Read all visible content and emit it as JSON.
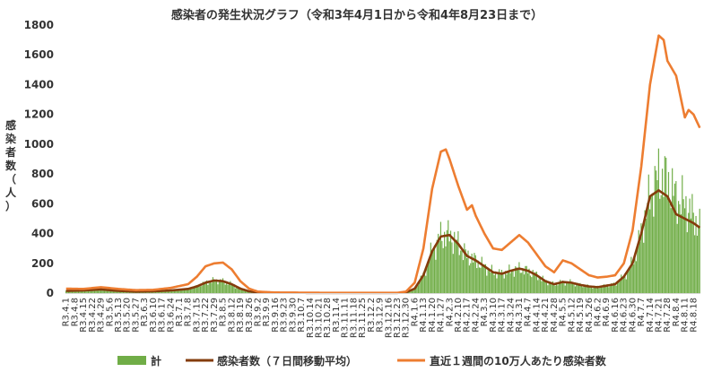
{
  "chart_data": {
    "type": "bar",
    "title": "感染者の発生状況グラフ（令和3年4月1日から令和4年8月23日まで）",
    "ylabel_chars": [
      "感",
      "染",
      "者",
      "数",
      "（",
      "人",
      "）"
    ],
    "ylim": [
      0,
      1800
    ],
    "yticks": [
      "0",
      "200",
      "400",
      "600",
      "800",
      "1000",
      "1200",
      "1400",
      "1600",
      "1800"
    ],
    "days_total": 510,
    "x_tick_labels": [
      "R3.4.1",
      "R3.4.8",
      "R3.4.15",
      "R3.4.22",
      "R3.4.29",
      "R3.5.6",
      "R3.5.13",
      "R3.5.20",
      "R3.5.27",
      "R3.6.3",
      "R3.6.10",
      "R3.6.17",
      "R3.6.24",
      "R3.7.1",
      "R3.7.8",
      "R3.7.15",
      "R3.7.22",
      "R3.7.29",
      "R3.8.5",
      "R3.8.12",
      "R3.8.19",
      "R3.8.26",
      "R3.9.2",
      "R3.9.9",
      "R3.9.16",
      "R3.9.23",
      "R3.9.30",
      "R3.10.7",
      "R3.10.14",
      "R3.10.21",
      "R3.10.28",
      "R3.11.4",
      "R3.11.11",
      "R3.11.18",
      "R3.11.25",
      "R3.12.2",
      "R3.12.9",
      "R3.12.16",
      "R3.12.23",
      "R3.12.30",
      "R4.1.6",
      "R4.1.13",
      "R4.1.20",
      "R4.1.27",
      "R4.2.3",
      "R4.2.10",
      "R4.2.17",
      "R4.2.24",
      "R4.3.3",
      "R4.3.10",
      "R4.3.17",
      "R4.3.24",
      "R4.3.31",
      "R4.4.7",
      "R4.4.14",
      "R4.4.21",
      "R4.4.28",
      "R4.5.5",
      "R4.5.12",
      "R4.5.19",
      "R4.5.26",
      "R4.6.2",
      "R4.6.9",
      "R4.6.16",
      "R4.6.23",
      "R4.6.30",
      "R4.7.7",
      "R4.7.14",
      "R4.7.21",
      "R4.7.28",
      "R4.8.4",
      "R4.8.11",
      "R4.8.18"
    ],
    "series": [
      {
        "name": "計",
        "kind": "bar",
        "color": "#70ad47",
        "anchors": [
          [
            0,
            15
          ],
          [
            14,
            18
          ],
          [
            28,
            25
          ],
          [
            42,
            15
          ],
          [
            56,
            10
          ],
          [
            70,
            12
          ],
          [
            84,
            18
          ],
          [
            98,
            28
          ],
          [
            105,
            45
          ],
          [
            112,
            70
          ],
          [
            119,
            85
          ],
          [
            126,
            80
          ],
          [
            133,
            60
          ],
          [
            140,
            30
          ],
          [
            147,
            12
          ],
          [
            154,
            4
          ],
          [
            168,
            2
          ],
          [
            210,
            1
          ],
          [
            266,
            1
          ],
          [
            273,
            5
          ],
          [
            280,
            30
          ],
          [
            287,
            120
          ],
          [
            294,
            280
          ],
          [
            301,
            380
          ],
          [
            308,
            390
          ],
          [
            315,
            330
          ],
          [
            322,
            250
          ],
          [
            329,
            220
          ],
          [
            336,
            180
          ],
          [
            343,
            140
          ],
          [
            350,
            130
          ],
          [
            357,
            150
          ],
          [
            364,
            165
          ],
          [
            371,
            150
          ],
          [
            378,
            120
          ],
          [
            385,
            80
          ],
          [
            392,
            60
          ],
          [
            399,
            75
          ],
          [
            406,
            70
          ],
          [
            413,
            55
          ],
          [
            420,
            45
          ],
          [
            427,
            40
          ],
          [
            434,
            50
          ],
          [
            441,
            60
          ],
          [
            448,
            110
          ],
          [
            455,
            200
          ],
          [
            462,
            400
          ],
          [
            469,
            650
          ],
          [
            476,
            790
          ],
          [
            483,
            760
          ],
          [
            490,
            640
          ],
          [
            497,
            600
          ],
          [
            504,
            520
          ],
          [
            509,
            440
          ]
        ],
        "noise": 0.32
      },
      {
        "name": "感染者数（７日間移動平均）",
        "kind": "line",
        "color": "#843c0c",
        "anchors": [
          [
            0,
            15
          ],
          [
            14,
            18
          ],
          [
            28,
            25
          ],
          [
            42,
            15
          ],
          [
            56,
            10
          ],
          [
            70,
            12
          ],
          [
            84,
            18
          ],
          [
            98,
            28
          ],
          [
            105,
            45
          ],
          [
            112,
            70
          ],
          [
            119,
            85
          ],
          [
            126,
            80
          ],
          [
            133,
            60
          ],
          [
            140,
            30
          ],
          [
            147,
            12
          ],
          [
            154,
            4
          ],
          [
            168,
            2
          ],
          [
            210,
            1
          ],
          [
            266,
            1
          ],
          [
            273,
            5
          ],
          [
            280,
            30
          ],
          [
            287,
            120
          ],
          [
            294,
            280
          ],
          [
            301,
            380
          ],
          [
            308,
            390
          ],
          [
            315,
            330
          ],
          [
            322,
            250
          ],
          [
            329,
            220
          ],
          [
            336,
            180
          ],
          [
            343,
            140
          ],
          [
            350,
            130
          ],
          [
            357,
            150
          ],
          [
            364,
            165
          ],
          [
            371,
            150
          ],
          [
            378,
            120
          ],
          [
            385,
            80
          ],
          [
            392,
            60
          ],
          [
            399,
            75
          ],
          [
            406,
            70
          ],
          [
            413,
            55
          ],
          [
            420,
            45
          ],
          [
            427,
            40
          ],
          [
            434,
            50
          ],
          [
            441,
            60
          ],
          [
            448,
            110
          ],
          [
            455,
            200
          ],
          [
            462,
            400
          ],
          [
            469,
            650
          ],
          [
            476,
            690
          ],
          [
            483,
            650
          ],
          [
            490,
            530
          ],
          [
            497,
            500
          ],
          [
            504,
            470
          ],
          [
            509,
            440
          ]
        ]
      },
      {
        "name": "直近１週間の10万人あたり感染者数",
        "kind": "line",
        "color": "#ed7d31",
        "anchors": [
          [
            0,
            30
          ],
          [
            14,
            28
          ],
          [
            28,
            40
          ],
          [
            42,
            28
          ],
          [
            56,
            20
          ],
          [
            70,
            22
          ],
          [
            84,
            35
          ],
          [
            98,
            60
          ],
          [
            105,
            110
          ],
          [
            112,
            180
          ],
          [
            119,
            200
          ],
          [
            126,
            205
          ],
          [
            133,
            160
          ],
          [
            140,
            80
          ],
          [
            147,
            30
          ],
          [
            154,
            10
          ],
          [
            168,
            4
          ],
          [
            210,
            2
          ],
          [
            266,
            2
          ],
          [
            273,
            10
          ],
          [
            280,
            70
          ],
          [
            287,
            300
          ],
          [
            294,
            700
          ],
          [
            301,
            950
          ],
          [
            305,
            965
          ],
          [
            308,
            900
          ],
          [
            315,
            720
          ],
          [
            322,
            560
          ],
          [
            326,
            590
          ],
          [
            329,
            520
          ],
          [
            336,
            400
          ],
          [
            343,
            300
          ],
          [
            350,
            290
          ],
          [
            357,
            340
          ],
          [
            364,
            390
          ],
          [
            371,
            340
          ],
          [
            378,
            260
          ],
          [
            385,
            180
          ],
          [
            392,
            140
          ],
          [
            399,
            220
          ],
          [
            406,
            200
          ],
          [
            413,
            160
          ],
          [
            420,
            120
          ],
          [
            427,
            105
          ],
          [
            434,
            110
          ],
          [
            441,
            120
          ],
          [
            448,
            200
          ],
          [
            455,
            420
          ],
          [
            462,
            850
          ],
          [
            469,
            1400
          ],
          [
            476,
            1730
          ],
          [
            480,
            1700
          ],
          [
            483,
            1560
          ],
          [
            490,
            1460
          ],
          [
            497,
            1180
          ],
          [
            500,
            1230
          ],
          [
            504,
            1200
          ],
          [
            509,
            1110
          ]
        ]
      }
    ]
  }
}
